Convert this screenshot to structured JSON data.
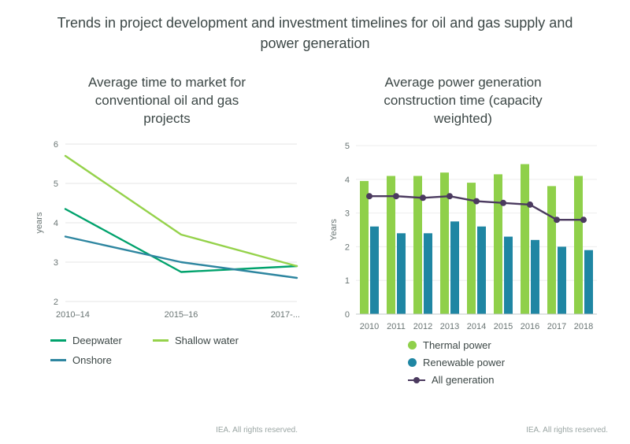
{
  "page_title": "Trends in project development and investment timelines for oil and gas supply and power generation",
  "footer": "IEA. All rights reserved.",
  "colors": {
    "deepwater": "#00a26c",
    "shallow_water": "#95d24b",
    "onshore": "#2e86a0",
    "thermal": "#8fd04a",
    "renewable": "#1f86a3",
    "all_generation": "#4b3a5f",
    "grid": "#e4e6e6",
    "grid_light": "#ededed",
    "baseline": "#c2c8c8",
    "axis_text": "#6a7574"
  },
  "chart_data": [
    {
      "type": "line",
      "title": "Average time to market for conventional oil and gas projects",
      "ylabel": "years",
      "ylim": [
        2,
        6
      ],
      "yticks": [
        2,
        3,
        4,
        5,
        6
      ],
      "categories": [
        "2010–14",
        "2015–16",
        "2017-..."
      ],
      "grid": true,
      "legend_position": "bottom",
      "series": [
        {
          "name": "Deepwater",
          "color_key": "deepwater",
          "values": [
            4.35,
            2.75,
            2.9
          ]
        },
        {
          "name": "Shallow water",
          "color_key": "shallow_water",
          "values": [
            5.7,
            3.7,
            2.9
          ]
        },
        {
          "name": "Onshore",
          "color_key": "onshore",
          "values": [
            3.65,
            3.0,
            2.6
          ]
        }
      ]
    },
    {
      "type": "bar",
      "title": "Average power generation construction time (capacity weighted)",
      "ylabel": "Years",
      "ylim": [
        0,
        5
      ],
      "yticks": [
        0,
        1,
        2,
        3,
        4,
        5
      ],
      "categories": [
        "2010",
        "2011",
        "2012",
        "2013",
        "2014",
        "2015",
        "2016",
        "2017",
        "2018"
      ],
      "grid": true,
      "legend_position": "bottom",
      "series": [
        {
          "name": "Thermal power",
          "type": "bar",
          "color_key": "thermal",
          "values": [
            3.95,
            4.1,
            4.1,
            4.2,
            3.9,
            4.15,
            4.45,
            3.8,
            4.1
          ]
        },
        {
          "name": "Renewable power",
          "type": "bar",
          "color_key": "renewable",
          "values": [
            2.6,
            2.4,
            2.4,
            2.75,
            2.6,
            2.3,
            2.2,
            2.0,
            1.9
          ]
        },
        {
          "name": "All generation",
          "type": "line",
          "color_key": "all_generation",
          "values": [
            3.5,
            3.5,
            3.45,
            3.5,
            3.35,
            3.3,
            3.25,
            2.8,
            2.8
          ]
        }
      ]
    }
  ]
}
